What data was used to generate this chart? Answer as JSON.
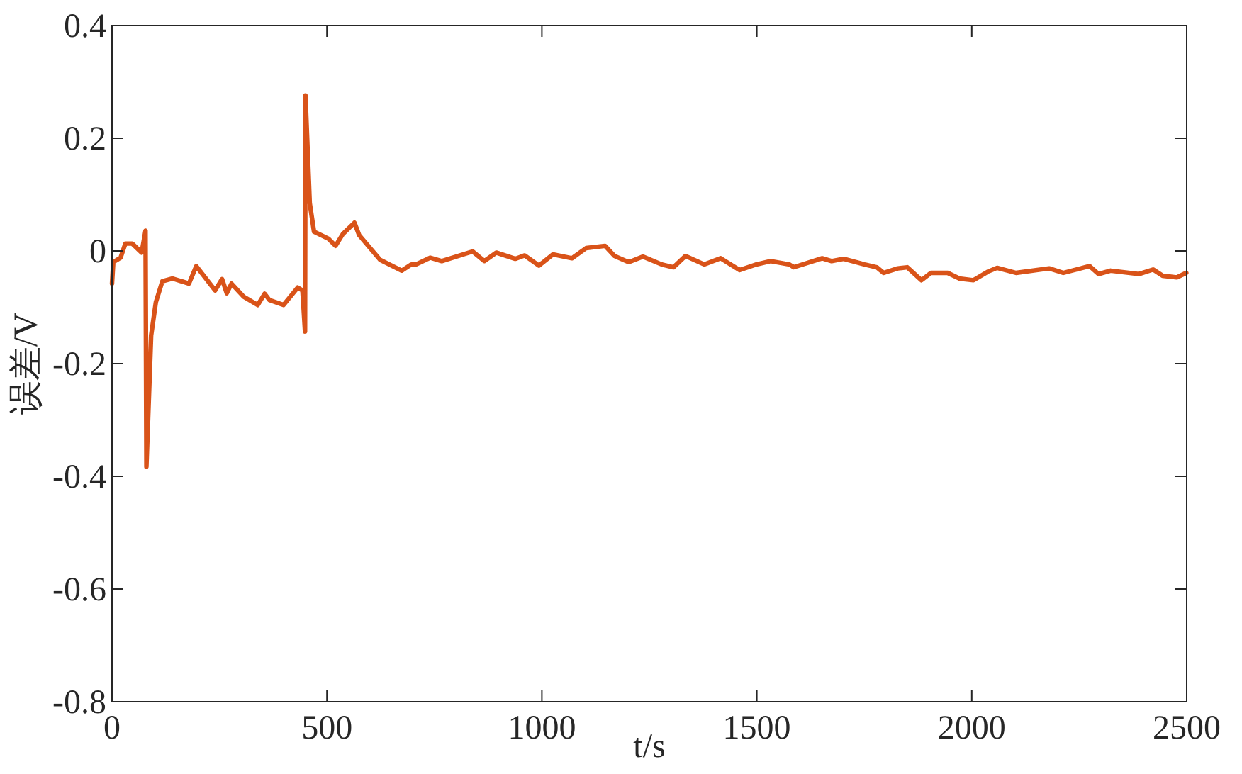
{
  "chart_data": {
    "type": "line",
    "xlabel": "t/s",
    "ylabel": "误差/V",
    "xlim": [
      0,
      2500
    ],
    "xticks": [
      0,
      500,
      1000,
      1500,
      2000,
      2500
    ],
    "ylim": [
      -0.8,
      0.4
    ],
    "yticks": [
      -0.8,
      -0.6,
      -0.4,
      -0.2,
      0,
      0.2,
      0.4
    ],
    "grid": false,
    "marker": "none",
    "line_style": "solid",
    "series": [
      {
        "color": "#d95319",
        "x": [
          0,
          3,
          20,
          31,
          47,
          69,
          78,
          80,
          91,
          102,
          117,
          141,
          179,
          196,
          240,
          256,
          267,
          278,
          306,
          339,
          355,
          366,
          399,
          432,
          443,
          449,
          450,
          460,
          470,
          503,
          520,
          537,
          564,
          575,
          624,
          674,
          696,
          707,
          740,
          767,
          839,
          866,
          894,
          938,
          960,
          993,
          1026,
          1070,
          1103,
          1147,
          1169,
          1202,
          1235,
          1279,
          1306,
          1334,
          1378,
          1416,
          1460,
          1499,
          1532,
          1576,
          1586,
          1652,
          1674,
          1702,
          1751,
          1779,
          1795,
          1828,
          1850,
          1883,
          1905,
          1944,
          1971,
          2004,
          2037,
          2059,
          2103,
          2180,
          2213,
          2274,
          2295,
          2323,
          2389,
          2422,
          2444,
          2477,
          2499
        ],
        "values": [
          -0.058,
          -0.02,
          -0.012,
          0.013,
          0.013,
          -0.003,
          0.036,
          -0.383,
          -0.15,
          -0.091,
          -0.054,
          -0.049,
          -0.058,
          -0.027,
          -0.07,
          -0.05,
          -0.075,
          -0.058,
          -0.081,
          -0.096,
          -0.076,
          -0.087,
          -0.096,
          -0.065,
          -0.07,
          -0.143,
          0.276,
          0.085,
          0.034,
          0.022,
          0.009,
          0.03,
          0.05,
          0.028,
          -0.016,
          -0.035,
          -0.024,
          -0.024,
          -0.012,
          -0.018,
          -0.001,
          -0.018,
          -0.003,
          -0.014,
          -0.008,
          -0.026,
          -0.006,
          -0.013,
          0.005,
          0.009,
          -0.009,
          -0.02,
          -0.01,
          -0.024,
          -0.029,
          -0.009,
          -0.024,
          -0.013,
          -0.034,
          -0.024,
          -0.018,
          -0.024,
          -0.029,
          -0.013,
          -0.018,
          -0.014,
          -0.024,
          -0.029,
          -0.039,
          -0.031,
          -0.029,
          -0.052,
          -0.039,
          -0.039,
          -0.049,
          -0.052,
          -0.037,
          -0.03,
          -0.039,
          -0.031,
          -0.039,
          -0.027,
          -0.041,
          -0.035,
          -0.041,
          -0.033,
          -0.044,
          -0.047,
          -0.039
        ]
      }
    ]
  }
}
